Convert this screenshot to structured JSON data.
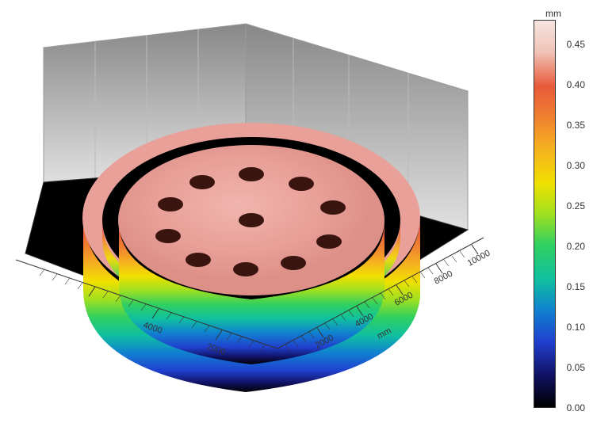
{
  "colorbar": {
    "unit": "mm",
    "min": 0.0,
    "max": 0.48,
    "ticks": [
      0.0,
      0.05,
      0.1,
      0.15,
      0.2,
      0.25,
      0.3,
      0.35,
      0.4,
      0.45
    ],
    "gradient_stops": [
      {
        "pct": 0,
        "color": "#f5e5e0"
      },
      {
        "pct": 8,
        "color": "#f0c4b8"
      },
      {
        "pct": 17,
        "color": "#e85a3a"
      },
      {
        "pct": 25,
        "color": "#f08030"
      },
      {
        "pct": 33,
        "color": "#f5b020"
      },
      {
        "pct": 42,
        "color": "#f0e000"
      },
      {
        "pct": 50,
        "color": "#a0e020"
      },
      {
        "pct": 58,
        "color": "#30d060"
      },
      {
        "pct": 67,
        "color": "#10c0a0"
      },
      {
        "pct": 75,
        "color": "#1080d0"
      },
      {
        "pct": 83,
        "color": "#2040d0"
      },
      {
        "pct": 92,
        "color": "#101060"
      },
      {
        "pct": 100,
        "color": "#000000"
      }
    ]
  },
  "axes": {
    "front_axis": {
      "unit": "mm",
      "ticks": [
        2000,
        4000,
        6000,
        8000,
        10000
      ],
      "range_min": 0,
      "range_max": 11000
    },
    "side_axis": {
      "unit": "mm",
      "ticks": [
        2000,
        4000
      ],
      "range_min": 0,
      "range_max": 7000
    },
    "z_axis": {
      "unit": "mm",
      "range_min": 0.0,
      "range_max": 0.48
    }
  },
  "surface": {
    "description": "3D height map of circular disc with concentric outer ring, 11 circular holes in disc top",
    "outer_ring": {
      "outer_radius_mm": 5000,
      "inner_radius_mm": 4400,
      "height_mm": 0.42
    },
    "inner_disc": {
      "radius_mm": 4000,
      "top_height_mm": 0.42,
      "holes_count": 11,
      "hole_radius_mm": 350,
      "holes_pattern": "1 center + 10 around ring at ~2500mm radius"
    },
    "floor_color": "#000000",
    "wall_gradient": [
      "#808080",
      "#d0d0d0"
    ],
    "disc_top_color": "#eaa098"
  },
  "view": {
    "projection": "isometric-like perspective",
    "azimuth_deg": 225,
    "elevation_deg": 35
  }
}
